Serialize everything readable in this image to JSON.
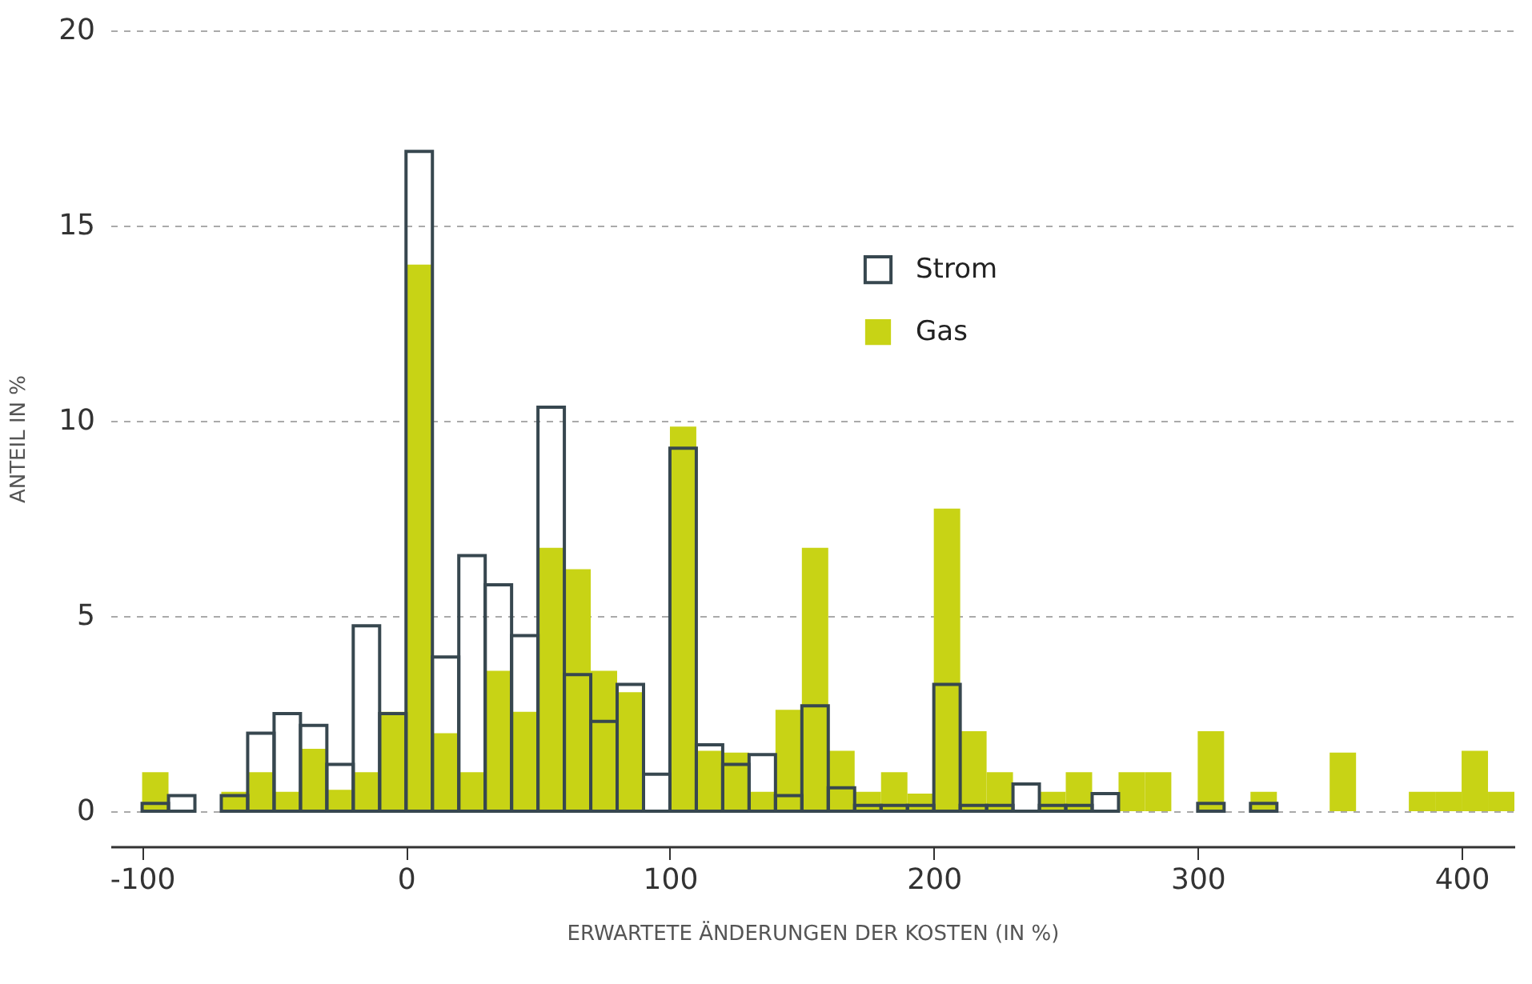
{
  "chart_data": {
    "type": "histogram",
    "xlabel": "ERWARTETE ÄNDERUNGEN DER KOSTEN (IN %)",
    "ylabel": "ANTEIL IN %",
    "bins": [
      -100,
      -90,
      -80,
      -70,
      -60,
      -50,
      -40,
      -30,
      -20,
      -10,
      0,
      10,
      20,
      30,
      40,
      50,
      60,
      70,
      80,
      90,
      100,
      110,
      120,
      130,
      140,
      150,
      160,
      170,
      180,
      190,
      200,
      210,
      220,
      230,
      240,
      250,
      260,
      270,
      280,
      290,
      300,
      310,
      320,
      330,
      340,
      350,
      360,
      370,
      380,
      390,
      400,
      410,
      420
    ],
    "series": [
      {
        "name": "Strom",
        "color": "#37474f",
        "values": [
          0.2,
          0.4,
          0,
          0.4,
          2.0,
          2.5,
          2.2,
          1.2,
          4.75,
          2.5,
          16.9,
          3.95,
          6.55,
          5.8,
          4.5,
          10.35,
          3.5,
          2.3,
          3.25,
          0.95,
          9.3,
          1.7,
          1.2,
          1.45,
          0.4,
          2.7,
          0.6,
          0.15,
          0.15,
          0.15,
          3.25,
          0.15,
          0.15,
          0.7,
          0.15,
          0.15,
          0.45,
          0,
          0,
          0,
          0.2,
          0,
          0.2,
          0,
          0,
          0,
          0,
          0,
          0,
          0,
          0,
          0
        ]
      },
      {
        "name": "Gas",
        "color": "#c8d315",
        "values": [
          1.0,
          0,
          0,
          0.5,
          1.0,
          0.5,
          1.6,
          0.55,
          1.0,
          2.55,
          14.0,
          2.0,
          1.0,
          3.6,
          2.55,
          6.75,
          6.2,
          3.6,
          3.05,
          0,
          9.85,
          1.55,
          1.5,
          0.5,
          2.6,
          6.75,
          1.55,
          0.5,
          1.0,
          0.45,
          7.75,
          2.05,
          1.0,
          0,
          0.5,
          1.0,
          0,
          1.0,
          1.0,
          0,
          2.05,
          0,
          0.5,
          0,
          0,
          1.5,
          0,
          0,
          0.5,
          0.5,
          1.55,
          0.5
        ]
      }
    ],
    "xlim": [
      -112,
      420
    ],
    "xticks": [
      -100,
      0,
      100,
      200,
      300,
      400
    ],
    "ylim": [
      -0.9,
      20
    ],
    "yticks": [
      0,
      5,
      10,
      15,
      20
    ],
    "grid": "y",
    "legend": "top right"
  }
}
